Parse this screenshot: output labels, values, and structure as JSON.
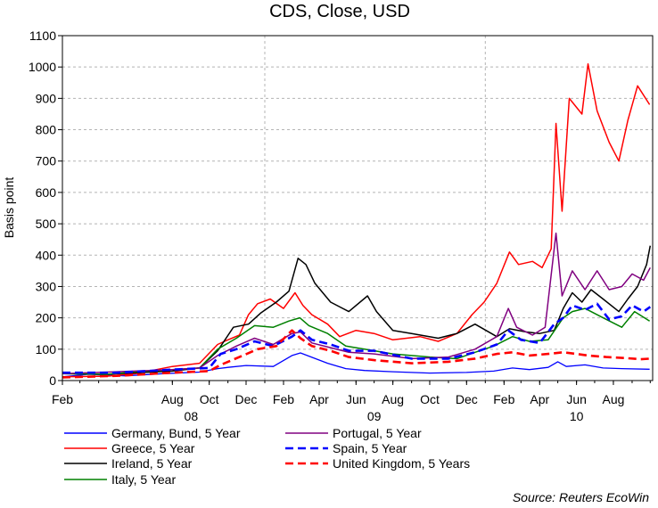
{
  "chart_data": {
    "type": "line",
    "title": "CDS, Close, USD",
    "ylabel": "Basis point",
    "xlabel": "",
    "ylim": [
      0,
      1100
    ],
    "y_ticks": [
      0,
      100,
      200,
      300,
      400,
      500,
      600,
      700,
      800,
      900,
      1000,
      1100
    ],
    "x_domain": [
      "2008-02-01",
      "2010-10-05"
    ],
    "x_ticks": [
      {
        "label": "Feb",
        "date": "2008-02-01"
      },
      {
        "label": "Aug",
        "date": "2008-08-01"
      },
      {
        "label": "Oct",
        "date": "2008-10-01"
      },
      {
        "label": "Dec",
        "date": "2008-12-01"
      },
      {
        "label": "Feb",
        "date": "2009-02-01"
      },
      {
        "label": "Apr",
        "date": "2009-04-01"
      },
      {
        "label": "Jun",
        "date": "2009-06-01"
      },
      {
        "label": "Aug",
        "date": "2009-08-01"
      },
      {
        "label": "Oct",
        "date": "2009-10-01"
      },
      {
        "label": "Dec",
        "date": "2009-12-01"
      },
      {
        "label": "Feb",
        "date": "2010-02-01"
      },
      {
        "label": "Apr",
        "date": "2010-04-01"
      },
      {
        "label": "Jun",
        "date": "2010-06-01"
      },
      {
        "label": "Aug",
        "date": "2010-08-01"
      }
    ],
    "year_labels": [
      {
        "label": "08",
        "date": "2008-09-01"
      },
      {
        "label": "09",
        "date": "2009-07-01"
      },
      {
        "label": "10",
        "date": "2010-06-01"
      }
    ],
    "vertical_grid_dates": [
      "2009-01-01",
      "2010-01-01"
    ],
    "grid": true,
    "legend_position": "bottom",
    "source": "Source: Reuters EcoWin",
    "series": [
      {
        "name": "Germany, Bund, 5 Year",
        "color": "#0000ff",
        "dashed": false,
        "width": 1.3,
        "points": [
          [
            "2008-02-01",
            12
          ],
          [
            "2008-03-15",
            20
          ],
          [
            "2008-05-15",
            15
          ],
          [
            "2008-07-15",
            22
          ],
          [
            "2008-09-15",
            27
          ],
          [
            "2008-10-15",
            38
          ],
          [
            "2008-11-01",
            42
          ],
          [
            "2008-12-01",
            48
          ],
          [
            "2009-01-15",
            45
          ],
          [
            "2009-02-15",
            80
          ],
          [
            "2009-03-01",
            88
          ],
          [
            "2009-03-15",
            78
          ],
          [
            "2009-04-15",
            55
          ],
          [
            "2009-05-15",
            38
          ],
          [
            "2009-06-15",
            32
          ],
          [
            "2009-08-01",
            28
          ],
          [
            "2009-10-01",
            24
          ],
          [
            "2009-12-01",
            26
          ],
          [
            "2010-01-15",
            30
          ],
          [
            "2010-02-15",
            40
          ],
          [
            "2010-03-15",
            35
          ],
          [
            "2010-04-15",
            42
          ],
          [
            "2010-05-01",
            60
          ],
          [
            "2010-05-15",
            45
          ],
          [
            "2010-06-15",
            50
          ],
          [
            "2010-07-15",
            40
          ],
          [
            "2010-08-15",
            38
          ],
          [
            "2010-09-30",
            36
          ]
        ]
      },
      {
        "name": "Greece, 5 Year",
        "color": "#ff0000",
        "dashed": false,
        "width": 1.5,
        "points": [
          [
            "2008-02-01",
            12
          ],
          [
            "2008-04-15",
            14
          ],
          [
            "2008-06-01",
            22
          ],
          [
            "2008-08-01",
            45
          ],
          [
            "2008-09-15",
            55
          ],
          [
            "2008-10-15",
            115
          ],
          [
            "2008-11-01",
            130
          ],
          [
            "2008-11-20",
            145
          ],
          [
            "2008-12-05",
            210
          ],
          [
            "2008-12-20",
            245
          ],
          [
            "2009-01-10",
            260
          ],
          [
            "2009-02-01",
            230
          ],
          [
            "2009-02-20",
            280
          ],
          [
            "2009-03-05",
            240
          ],
          [
            "2009-03-20",
            210
          ],
          [
            "2009-04-15",
            180
          ],
          [
            "2009-05-05",
            140
          ],
          [
            "2009-06-01",
            160
          ],
          [
            "2009-07-01",
            150
          ],
          [
            "2009-08-01",
            130
          ],
          [
            "2009-09-15",
            140
          ],
          [
            "2009-10-15",
            125
          ],
          [
            "2009-11-15",
            150
          ],
          [
            "2009-12-10",
            210
          ],
          [
            "2009-12-30",
            250
          ],
          [
            "2010-01-20",
            310
          ],
          [
            "2010-02-10",
            410
          ],
          [
            "2010-02-25",
            370
          ],
          [
            "2010-03-20",
            380
          ],
          [
            "2010-04-05",
            360
          ],
          [
            "2010-04-20",
            420
          ],
          [
            "2010-04-28",
            820
          ],
          [
            "2010-05-08",
            540
          ],
          [
            "2010-05-20",
            900
          ],
          [
            "2010-06-10",
            850
          ],
          [
            "2010-06-20",
            1010
          ],
          [
            "2010-07-05",
            860
          ],
          [
            "2010-07-25",
            760
          ],
          [
            "2010-08-10",
            700
          ],
          [
            "2010-08-25",
            830
          ],
          [
            "2010-09-10",
            940
          ],
          [
            "2010-09-30",
            880
          ]
        ]
      },
      {
        "name": "Ireland, 5 Year",
        "color": "#000000",
        "dashed": false,
        "width": 1.5,
        "points": [
          [
            "2008-02-01",
            22
          ],
          [
            "2008-04-15",
            20
          ],
          [
            "2008-06-01",
            25
          ],
          [
            "2008-08-01",
            30
          ],
          [
            "2008-09-15",
            40
          ],
          [
            "2008-10-15",
            95
          ],
          [
            "2008-11-10",
            170
          ],
          [
            "2008-12-05",
            180
          ],
          [
            "2008-12-25",
            215
          ],
          [
            "2009-01-20",
            250
          ],
          [
            "2009-02-10",
            285
          ],
          [
            "2009-02-25",
            390
          ],
          [
            "2009-03-10",
            370
          ],
          [
            "2009-03-25",
            310
          ],
          [
            "2009-04-20",
            250
          ],
          [
            "2009-05-20",
            220
          ],
          [
            "2009-06-20",
            270
          ],
          [
            "2009-07-05",
            220
          ],
          [
            "2009-08-01",
            160
          ],
          [
            "2009-09-01",
            150
          ],
          [
            "2009-10-15",
            135
          ],
          [
            "2009-11-15",
            150
          ],
          [
            "2009-12-15",
            180
          ],
          [
            "2010-01-20",
            140
          ],
          [
            "2010-02-10",
            165
          ],
          [
            "2010-03-10",
            155
          ],
          [
            "2010-04-01",
            150
          ],
          [
            "2010-04-25",
            160
          ],
          [
            "2010-05-10",
            230
          ],
          [
            "2010-05-25",
            280
          ],
          [
            "2010-06-10",
            250
          ],
          [
            "2010-06-25",
            290
          ],
          [
            "2010-07-15",
            260
          ],
          [
            "2010-08-10",
            220
          ],
          [
            "2010-08-25",
            260
          ],
          [
            "2010-09-10",
            300
          ],
          [
            "2010-09-25",
            370
          ],
          [
            "2010-10-01",
            430
          ]
        ]
      },
      {
        "name": "Italy, 5 Year",
        "color": "#008000",
        "dashed": false,
        "width": 1.5,
        "points": [
          [
            "2008-02-01",
            22
          ],
          [
            "2008-04-15",
            20
          ],
          [
            "2008-06-01",
            28
          ],
          [
            "2008-08-01",
            35
          ],
          [
            "2008-09-15",
            40
          ],
          [
            "2008-10-15",
            100
          ],
          [
            "2008-11-15",
            135
          ],
          [
            "2008-12-15",
            175
          ],
          [
            "2009-01-15",
            170
          ],
          [
            "2009-02-10",
            190
          ],
          [
            "2009-02-28",
            200
          ],
          [
            "2009-03-15",
            175
          ],
          [
            "2009-04-15",
            150
          ],
          [
            "2009-05-15",
            110
          ],
          [
            "2009-06-15",
            100
          ],
          [
            "2009-08-01",
            85
          ],
          [
            "2009-10-01",
            75
          ],
          [
            "2009-11-15",
            70
          ],
          [
            "2009-12-15",
            90
          ],
          [
            "2010-01-15",
            110
          ],
          [
            "2010-02-15",
            140
          ],
          [
            "2010-03-15",
            125
          ],
          [
            "2010-04-15",
            130
          ],
          [
            "2010-05-10",
            200
          ],
          [
            "2010-05-25",
            220
          ],
          [
            "2010-06-15",
            230
          ],
          [
            "2010-07-15",
            200
          ],
          [
            "2010-08-15",
            170
          ],
          [
            "2010-09-05",
            220
          ],
          [
            "2010-09-30",
            190
          ]
        ]
      },
      {
        "name": "Portugal, 5 Year",
        "color": "#800080",
        "dashed": false,
        "width": 1.5,
        "points": [
          [
            "2008-02-01",
            22
          ],
          [
            "2008-05-01",
            28
          ],
          [
            "2008-08-01",
            35
          ],
          [
            "2008-09-15",
            40
          ],
          [
            "2008-10-15",
            80
          ],
          [
            "2008-11-15",
            110
          ],
          [
            "2008-12-15",
            135
          ],
          [
            "2009-01-15",
            115
          ],
          [
            "2009-02-15",
            150
          ],
          [
            "2009-03-01",
            155
          ],
          [
            "2009-03-20",
            120
          ],
          [
            "2009-04-20",
            105
          ],
          [
            "2009-05-20",
            90
          ],
          [
            "2009-07-01",
            85
          ],
          [
            "2009-09-01",
            70
          ],
          [
            "2009-11-01",
            75
          ],
          [
            "2009-12-15",
            100
          ],
          [
            "2010-01-20",
            140
          ],
          [
            "2010-02-08",
            230
          ],
          [
            "2010-02-22",
            170
          ],
          [
            "2010-03-20",
            145
          ],
          [
            "2010-04-10",
            170
          ],
          [
            "2010-04-28",
            470
          ],
          [
            "2010-05-08",
            270
          ],
          [
            "2010-05-25",
            350
          ],
          [
            "2010-06-15",
            290
          ],
          [
            "2010-07-05",
            350
          ],
          [
            "2010-07-25",
            290
          ],
          [
            "2010-08-15",
            300
          ],
          [
            "2010-09-01",
            340
          ],
          [
            "2010-09-20",
            320
          ],
          [
            "2010-10-01",
            360
          ]
        ]
      },
      {
        "name": "Spain, 5 Year",
        "color": "#0000ff",
        "dashed": true,
        "width": 2.6,
        "points": [
          [
            "2008-02-01",
            25
          ],
          [
            "2008-05-01",
            25
          ],
          [
            "2008-08-01",
            35
          ],
          [
            "2008-10-01",
            40
          ],
          [
            "2008-10-20",
            85
          ],
          [
            "2008-11-15",
            100
          ],
          [
            "2008-12-15",
            125
          ],
          [
            "2009-01-15",
            110
          ],
          [
            "2009-02-15",
            140
          ],
          [
            "2009-03-01",
            160
          ],
          [
            "2009-03-20",
            130
          ],
          [
            "2009-04-20",
            115
          ],
          [
            "2009-05-20",
            95
          ],
          [
            "2009-07-01",
            95
          ],
          [
            "2009-09-01",
            70
          ],
          [
            "2009-11-01",
            70
          ],
          [
            "2009-12-15",
            90
          ],
          [
            "2010-01-20",
            115
          ],
          [
            "2010-02-08",
            160
          ],
          [
            "2010-03-01",
            130
          ],
          [
            "2010-04-01",
            120
          ],
          [
            "2010-04-25",
            180
          ],
          [
            "2010-05-10",
            200
          ],
          [
            "2010-05-25",
            240
          ],
          [
            "2010-06-15",
            225
          ],
          [
            "2010-07-05",
            245
          ],
          [
            "2010-07-25",
            195
          ],
          [
            "2010-08-15",
            205
          ],
          [
            "2010-09-01",
            240
          ],
          [
            "2010-09-20",
            220
          ],
          [
            "2010-10-01",
            235
          ]
        ]
      },
      {
        "name": "United Kingdom, 5 Years",
        "color": "#ff0000",
        "dashed": true,
        "width": 2.6,
        "points": [
          [
            "2008-02-01",
            10
          ],
          [
            "2008-05-01",
            15
          ],
          [
            "2008-08-01",
            25
          ],
          [
            "2008-10-01",
            30
          ],
          [
            "2008-10-20",
            50
          ],
          [
            "2008-11-20",
            75
          ],
          [
            "2008-12-20",
            100
          ],
          [
            "2009-01-20",
            110
          ],
          [
            "2009-02-15",
            160
          ],
          [
            "2009-03-01",
            135
          ],
          [
            "2009-03-20",
            110
          ],
          [
            "2009-04-20",
            95
          ],
          [
            "2009-05-20",
            75
          ],
          [
            "2009-07-01",
            65
          ],
          [
            "2009-09-01",
            55
          ],
          [
            "2009-11-01",
            60
          ],
          [
            "2009-12-15",
            70
          ],
          [
            "2010-01-20",
            85
          ],
          [
            "2010-02-15",
            90
          ],
          [
            "2010-03-15",
            80
          ],
          [
            "2010-04-15",
            85
          ],
          [
            "2010-05-10",
            90
          ],
          [
            "2010-06-01",
            85
          ],
          [
            "2010-06-20",
            80
          ],
          [
            "2010-07-20",
            75
          ],
          [
            "2010-08-20",
            72
          ],
          [
            "2010-09-15",
            68
          ],
          [
            "2010-10-01",
            70
          ]
        ]
      }
    ]
  }
}
